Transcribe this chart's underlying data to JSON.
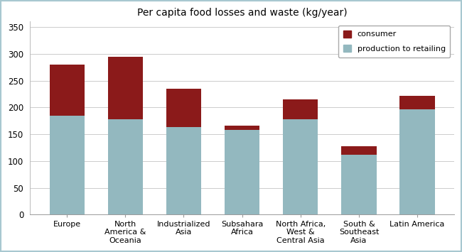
{
  "title": "Per capita food losses and waste (kg/year)",
  "categories": [
    "Europe",
    "North\nAmerica &\nOceania",
    "Industrialized\nAsia",
    "Subsahara\nAfrica",
    "North Africa,\nWest &\nCentral Asia",
    "South &\nSoutheast\nAsia",
    "Latin America"
  ],
  "production_to_retailing": [
    185,
    178,
    163,
    158,
    178,
    112,
    197
  ],
  "consumer": [
    95,
    117,
    72,
    8,
    37,
    15,
    25
  ],
  "color_consumer": "#8b1a1a",
  "color_production": "#93b8bf",
  "ylim": [
    0,
    360
  ],
  "yticks": [
    0,
    50,
    100,
    150,
    200,
    250,
    300,
    350
  ],
  "legend_consumer": "consumer",
  "legend_production": "production to retailing",
  "background_color": "#ffffff",
  "border_color": "#a8c8d0",
  "figsize": [
    6.5,
    3.55
  ],
  "dpi": 100
}
